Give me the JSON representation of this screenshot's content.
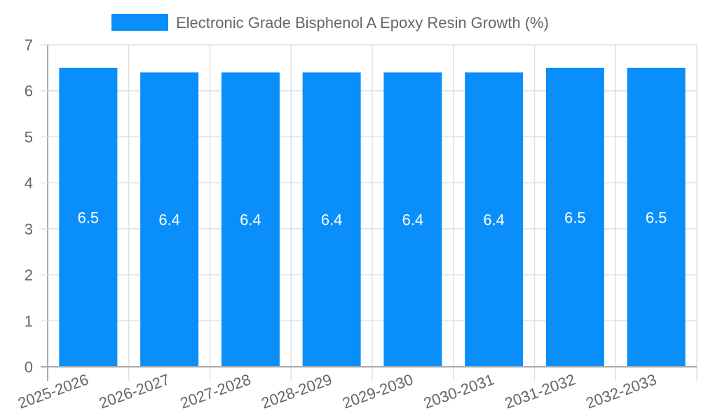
{
  "chart_data": {
    "type": "bar",
    "title": "",
    "xlabel": "",
    "ylabel": "",
    "ylim": [
      0,
      7
    ],
    "yticks": [
      0,
      1,
      2,
      3,
      4,
      5,
      6,
      7
    ],
    "grid": true,
    "legend_position": "top",
    "categories": [
      "2025-2026",
      "2026-2027",
      "2027-2028",
      "2028-2029",
      "2029-2030",
      "2030-2031",
      "2031-2032",
      "2032-2033"
    ],
    "series": [
      {
        "name": "Electronic Grade Bisphenol A Epoxy Resin Growth (%)",
        "color": "#0a8ffa",
        "values": [
          6.5,
          6.4,
          6.4,
          6.4,
          6.4,
          6.4,
          6.5,
          6.5
        ]
      }
    ]
  },
  "legend": {
    "label": "Electronic Grade Bisphenol A Epoxy Resin Growth (%)",
    "swatch_color": "#0a8ffa"
  },
  "colors": {
    "bar": "#0a8ffa",
    "grid": "#e0e0e0",
    "axis": "#aaaaaa",
    "text": "#666666",
    "bar_label": "#ffffff"
  }
}
